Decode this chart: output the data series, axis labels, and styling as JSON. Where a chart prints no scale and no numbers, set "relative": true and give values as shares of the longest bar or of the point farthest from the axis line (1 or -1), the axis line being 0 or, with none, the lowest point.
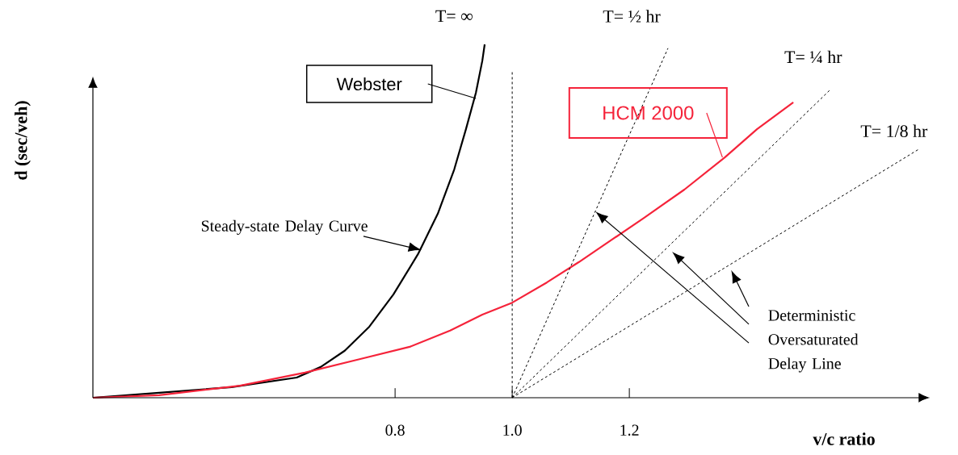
{
  "chart_data": {
    "type": "line",
    "relative": true,
    "xlabel": "v/c ratio",
    "ylabel": "d  (sec/veh)",
    "xlim": [
      0.284,
      1.694
    ],
    "xticks": [
      0.8,
      {
        "value": 1.0,
        "label": "1.0"
      },
      1.2
    ],
    "marker": "none",
    "series": [
      {
        "name": "Webster",
        "color": "#000000",
        "line_style": "solid",
        "x": [
          0.284,
          0.397,
          0.521,
          0.632,
          0.673,
          0.714,
          0.756,
          0.797,
          0.839,
          0.873,
          0.901,
          0.921,
          0.938,
          0.949,
          0.953
        ],
        "values": [
          0,
          0.014,
          0.03,
          0.057,
          0.087,
          0.133,
          0.201,
          0.292,
          0.406,
          0.521,
          0.646,
          0.76,
          0.863,
          0.954,
          1.0
        ]
      },
      {
        "name": "HCM 2000",
        "color": "#f5233a",
        "line_style": "solid",
        "x": [
          0.284,
          0.397,
          0.535,
          0.646,
          0.742,
          0.825,
          0.894,
          0.949,
          1.0,
          1.059,
          1.114,
          1.17,
          1.225,
          1.294,
          1.363,
          1.418,
          1.48
        ],
        "values": [
          0,
          0.007,
          0.034,
          0.071,
          0.11,
          0.144,
          0.19,
          0.235,
          0.269,
          0.326,
          0.384,
          0.447,
          0.509,
          0.589,
          0.68,
          0.76,
          0.836
        ]
      },
      {
        "name": "T= ½ hr",
        "color": "#000000",
        "line_style": "dashed",
        "x": [
          1.0,
          1.266
        ],
        "values": [
          0,
          0.989
        ]
      },
      {
        "name": "T= ¼ hr",
        "color": "#000000",
        "line_style": "dashed",
        "x": [
          1.0,
          1.542
        ],
        "values": [
          0,
          0.87
        ]
      },
      {
        "name": "T= 1/8 hr",
        "color": "#000000",
        "line_style": "dashed",
        "x": [
          1.0,
          1.694
        ],
        "values": [
          0,
          0.703
        ]
      }
    ],
    "ref_lines": [
      {
        "axis": "x",
        "value": 1.0,
        "line_style": "dashed",
        "color": "#000000"
      }
    ],
    "annotations": [
      "T= ∞",
      "Steady-state Delay Curve",
      "Deterministic Oversaturated Delay Line"
    ]
  }
}
